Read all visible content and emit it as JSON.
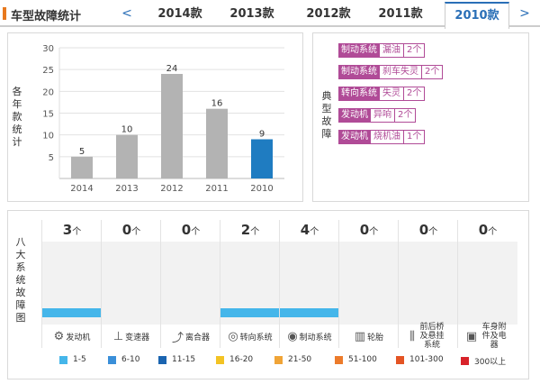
{
  "header": {
    "title": "车型故障统计",
    "prev": "<",
    "next": ">",
    "tabs": [
      "2014款",
      "2013款",
      "2012款",
      "2011款",
      "2010款"
    ],
    "active_tab": "2010款"
  },
  "chart_data": {
    "type": "bar",
    "categories": [
      "2014",
      "2013",
      "2012",
      "2011",
      "2010"
    ],
    "values": [
      5,
      10,
      24,
      16,
      9
    ],
    "ylabel": "各年款统计",
    "ylim": [
      0,
      30
    ],
    "yticks": [
      5,
      10,
      15,
      20,
      25,
      30
    ],
    "grid": true,
    "colors": {
      "normal": "#b3b3b3",
      "highlight": "#1f7cc1"
    },
    "highlight_index": 4
  },
  "typical": {
    "label": "典型故障",
    "items": [
      {
        "system": "制动系统",
        "desc": "漏油",
        "count": "2个"
      },
      {
        "system": "制动系统",
        "desc": "刹车失灵",
        "count": "2个"
      },
      {
        "system": "转向系统",
        "desc": "失灵",
        "count": "2个"
      },
      {
        "system": "发动机",
        "desc": "异响",
        "count": "2个"
      },
      {
        "system": "发动机",
        "desc": "烧机油",
        "count": "1个"
      }
    ]
  },
  "systems": {
    "label": "八大系统故障图",
    "unit": "个",
    "items": [
      {
        "name": "发动机",
        "count": "3",
        "icon": "engine-icon",
        "glyph": "⚙",
        "level": "1-5"
      },
      {
        "name": "变速器",
        "count": "0",
        "icon": "gearbox-icon",
        "glyph": "⊥",
        "level": ""
      },
      {
        "name": "离合器",
        "count": "0",
        "icon": "clutch-icon",
        "glyph": "⤴",
        "level": ""
      },
      {
        "name": "转向系统",
        "count": "2",
        "icon": "steering-wheel-icon",
        "glyph": "◎",
        "level": "1-5"
      },
      {
        "name": "制动系统",
        "count": "4",
        "icon": "brake-disc-icon",
        "glyph": "◉",
        "level": "1-5"
      },
      {
        "name": "轮胎",
        "count": "0",
        "icon": "tire-icon",
        "glyph": "▥",
        "level": ""
      },
      {
        "name": "前后桥及悬挂系统",
        "count": "0",
        "icon": "suspension-icon",
        "glyph": "⫼",
        "level": ""
      },
      {
        "name": "车身附件及电器",
        "count": "0",
        "icon": "car-body-icon",
        "glyph": "▣",
        "level": ""
      }
    ]
  },
  "legend": [
    {
      "label": "1-5",
      "color": "#45b6ea"
    },
    {
      "label": "6-10",
      "color": "#3a8fd9"
    },
    {
      "label": "11-15",
      "color": "#1a64b0"
    },
    {
      "label": "16-20",
      "color": "#f3c324"
    },
    {
      "label": "21-50",
      "color": "#f0a437"
    },
    {
      "label": "51-100",
      "color": "#ec7b2b"
    },
    {
      "label": "101-300",
      "color": "#e45424"
    },
    {
      "label": "300以上",
      "color": "#d8232a"
    }
  ]
}
